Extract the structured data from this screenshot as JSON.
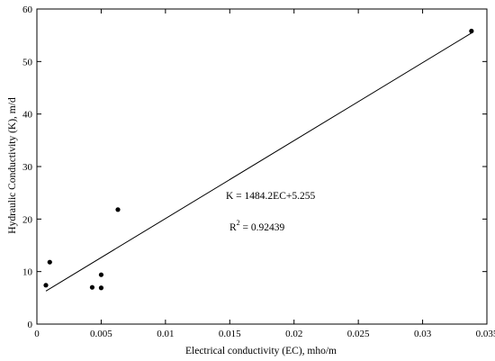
{
  "chart_data": {
    "type": "scatter",
    "title": "",
    "xlabel": "Electrical conductivity (EC), mho/m",
    "ylabel": "Hydraulic Conductivity (K), m/d",
    "xlim": [
      0,
      0.035
    ],
    "ylim": [
      0,
      60
    ],
    "xticks": [
      0,
      0.005,
      0.01,
      0.015,
      0.02,
      0.025,
      0.03,
      0.035
    ],
    "xtick_labels": [
      "0",
      "0.005",
      "0.01",
      "0.015",
      "0.02",
      "0.025",
      "0.03",
      "0.035"
    ],
    "yticks": [
      0,
      10,
      20,
      30,
      40,
      50,
      60
    ],
    "ytick_labels": [
      "0",
      "10",
      "20",
      "30",
      "40",
      "50",
      "60"
    ],
    "grid": false,
    "series": [
      {
        "points": [
          {
            "x": 0.0007,
            "y": 7.4
          },
          {
            "x": 0.001,
            "y": 11.8
          },
          {
            "x": 0.0043,
            "y": 7.0
          },
          {
            "x": 0.005,
            "y": 9.4
          },
          {
            "x": 0.005,
            "y": 6.9
          },
          {
            "x": 0.0063,
            "y": 21.8
          },
          {
            "x": 0.0338,
            "y": 55.8
          }
        ],
        "color": "#000000"
      }
    ],
    "trendline": {
      "slope": 1484.2,
      "intercept": 5.255,
      "x_range": [
        0.0007,
        0.0338
      ],
      "color": "#000000"
    },
    "annotations": {
      "equation": "K = 1484.2EC+5.255",
      "r2_prefix": "R",
      "r2_sup": "2",
      "r2_value": " = 0.92439"
    }
  }
}
